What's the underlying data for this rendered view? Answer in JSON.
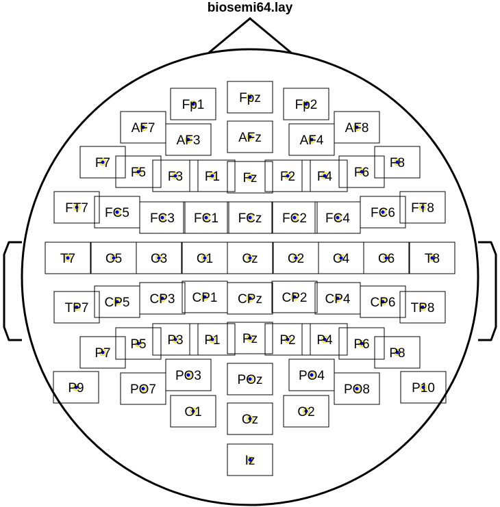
{
  "title": "biosemi64.lay",
  "marker_color": "#0000cc",
  "marker_ring_color": "#f0e020",
  "electrodes": [
    "Fp1",
    "Fpz",
    "Fp2",
    "AF7",
    "AF3",
    "AFz",
    "AF4",
    "AF8",
    "F7",
    "F5",
    "F3",
    "F1",
    "Fz",
    "F2",
    "F4",
    "F6",
    "F8",
    "FT7",
    "FC5",
    "FC3",
    "FC1",
    "FCz",
    "FC2",
    "FC4",
    "FC6",
    "FT8",
    "T7",
    "C5",
    "C3",
    "C1",
    "Cz",
    "C2",
    "C4",
    "C6",
    "T8",
    "TP7",
    "CP5",
    "CP3",
    "CP1",
    "CPz",
    "CP2",
    "CP4",
    "CP6",
    "TP8",
    "P7",
    "P5",
    "P3",
    "P1",
    "Pz",
    "P2",
    "P4",
    "P6",
    "P8",
    "P9",
    "PO7",
    "PO3",
    "POz",
    "PO4",
    "PO8",
    "P10",
    "O1",
    "Oz",
    "O2",
    "Iz"
  ]
}
